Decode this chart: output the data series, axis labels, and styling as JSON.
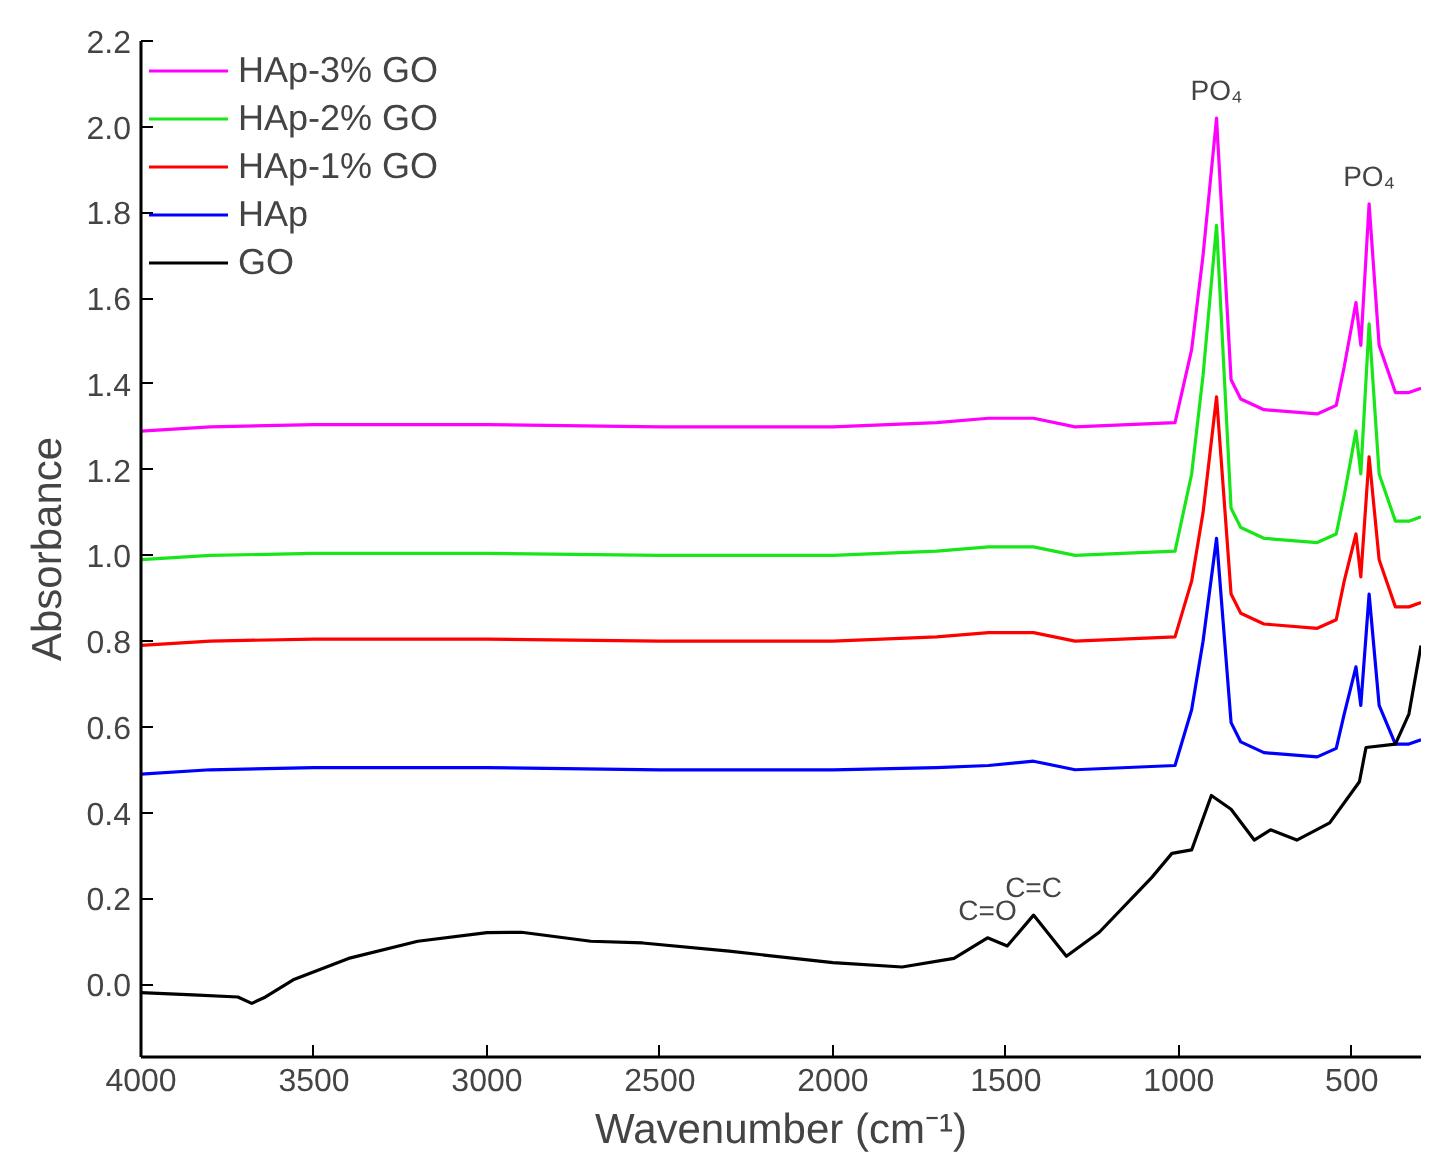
{
  "chart_data": {
    "type": "line",
    "xlabel": "Wavenumber (cm⁻¹)",
    "ylabel": "Absorbance",
    "xlim": [
      4000,
      300
    ],
    "ylim": [
      -0.17,
      2.2
    ],
    "xticks": [
      4000,
      3500,
      3000,
      2500,
      2000,
      1500,
      1000,
      500
    ],
    "yticks": [
      {
        "value": 0,
        "label": "0.0"
      },
      {
        "value": 0.2,
        "label": "0.2"
      },
      {
        "value": 0.4,
        "label": "0.4"
      },
      {
        "value": 0.6,
        "label": "0.6"
      },
      {
        "value": 0.8,
        "label": "0.8"
      },
      {
        "value": 1,
        "label": "1.0"
      },
      {
        "value": 1.2,
        "label": "1.2"
      },
      {
        "value": 1.4,
        "label": "1.4"
      },
      {
        "value": 1.6,
        "label": "1.6"
      },
      {
        "value": 1.8,
        "label": "1.8"
      },
      {
        "value": 2,
        "label": "2.0"
      },
      {
        "value": 2.2,
        "label": "2.2"
      }
    ],
    "grid": false,
    "legend": "top left",
    "marker": "none",
    "line_style": "solid",
    "x": [
      4000,
      3800,
      3500,
      3000,
      2500,
      2000,
      1700,
      1550,
      1420,
      1300,
      1011,
      963,
      930,
      891,
      849,
      821,
      754,
      600,
      545,
      522,
      488,
      474,
      450,
      421,
      374,
      335,
      300
    ],
    "series": [
      {
        "name": "HAp-3% GO",
        "color": "#ff00ff",
        "values": [
          1.29,
          1.3,
          1.305,
          1.305,
          1.3,
          1.3,
          1.31,
          1.32,
          1.32,
          1.3,
          1.31,
          1.48,
          1.7,
          2.02,
          1.41,
          1.365,
          1.34,
          1.33,
          1.35,
          1.44,
          1.59,
          1.49,
          1.82,
          1.49,
          1.38,
          1.38,
          1.39
        ]
      },
      {
        "name": "HAp-2% GO",
        "color": "#19e619",
        "values": [
          0.99,
          1.0,
          1.005,
          1.005,
          1.0,
          1.0,
          1.01,
          1.02,
          1.02,
          1.0,
          1.01,
          1.19,
          1.42,
          1.77,
          1.11,
          1.065,
          1.04,
          1.03,
          1.05,
          1.14,
          1.29,
          1.19,
          1.54,
          1.19,
          1.08,
          1.08,
          1.09
        ]
      },
      {
        "name": "HAp-1% GO",
        "color": "#ff0000",
        "values": [
          0.79,
          0.8,
          0.805,
          0.805,
          0.8,
          0.8,
          0.81,
          0.82,
          0.82,
          0.8,
          0.81,
          0.94,
          1.1,
          1.37,
          0.91,
          0.865,
          0.84,
          0.83,
          0.85,
          0.94,
          1.05,
          0.95,
          1.23,
          0.99,
          0.88,
          0.88,
          0.89
        ]
      },
      {
        "name": "HAp",
        "color": "#0000ff",
        "values": [
          0.49,
          0.5,
          0.505,
          0.505,
          0.5,
          0.5,
          0.505,
          0.51,
          0.52,
          0.5,
          0.51,
          0.64,
          0.8,
          1.04,
          0.61,
          0.565,
          0.54,
          0.53,
          0.55,
          0.63,
          0.74,
          0.65,
          0.91,
          0.65,
          0.56,
          0.56,
          0.57
        ]
      },
      {
        "name": "GO",
        "color": "#000000",
        "x": [
          4000,
          3850,
          3720,
          3680,
          3640,
          3560,
          3400,
          3200,
          3000,
          2900,
          2700,
          2550,
          2300,
          2000,
          1800,
          1650,
          1553,
          1496,
          1420,
          1325,
          1230,
          1078,
          1020,
          963,
          906,
          849,
          782,
          735,
          659,
          564,
          478,
          459,
          374,
          335,
          300
        ],
        "values": [
          -0.02,
          -0.025,
          -0.03,
          -0.045,
          -0.03,
          0.01,
          0.06,
          0.1,
          0.12,
          0.121,
          0.1,
          0.096,
          0.077,
          0.05,
          0.04,
          0.06,
          0.108,
          0.089,
          0.161,
          0.065,
          0.121,
          0.249,
          0.305,
          0.313,
          0.44,
          0.408,
          0.336,
          0.36,
          0.336,
          0.376,
          0.472,
          0.552,
          0.56,
          0.63,
          0.79
        ]
      }
    ],
    "annotations": [
      {
        "text": "PO₄",
        "x": 891,
        "y": 2.02
      },
      {
        "text": "PO₄",
        "x": 450,
        "y": 1.82
      },
      {
        "text": "C=O",
        "x": 1553,
        "y": 0.108
      },
      {
        "text": "C=C",
        "x": 1420,
        "y": 0.161
      }
    ]
  }
}
